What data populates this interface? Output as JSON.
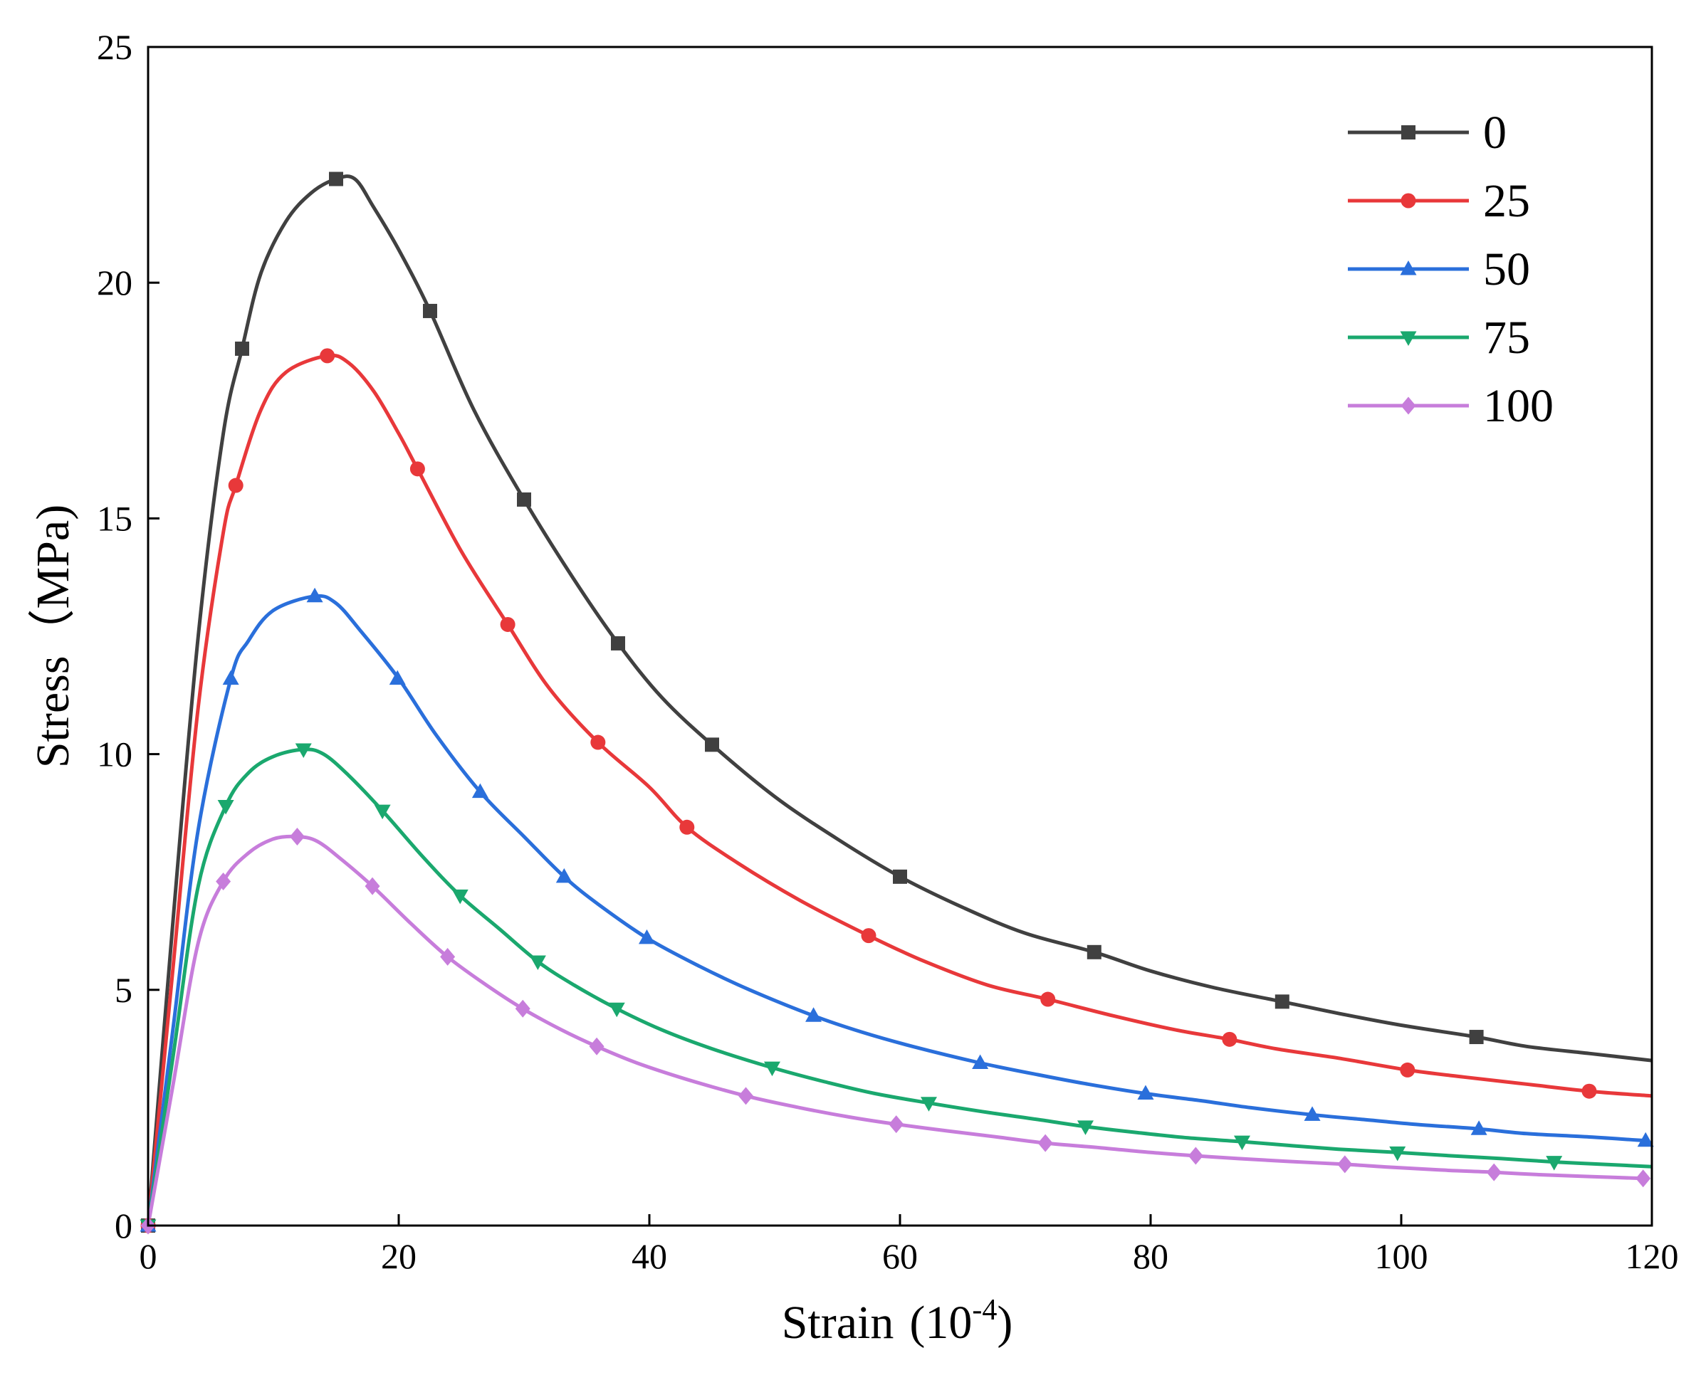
{
  "chart_data": {
    "type": "line",
    "title": "",
    "xlabel": "Strain",
    "xlabel_unit_base": "(10",
    "xlabel_unit_exp": "-4",
    "xlabel_unit_close": ")",
    "ylabel": "Stress（MPa)",
    "xlim": [
      0,
      120
    ],
    "ylim": [
      0,
      25
    ],
    "xticks": [
      0,
      20,
      40,
      60,
      80,
      100,
      120
    ],
    "yticks": [
      0,
      5,
      10,
      15,
      20,
      25
    ],
    "grid": false,
    "legend_position": "top-right",
    "series": [
      {
        "name": "0",
        "color": "#404040",
        "marker": "square",
        "curve": [
          [
            0,
            0
          ],
          [
            2,
            6.5
          ],
          [
            4,
            12.5
          ],
          [
            6,
            16.8
          ],
          [
            7.5,
            18.6
          ],
          [
            9,
            20.2
          ],
          [
            11,
            21.3
          ],
          [
            13,
            21.9
          ],
          [
            15,
            22.2
          ],
          [
            16.5,
            22.2
          ],
          [
            18,
            21.6
          ],
          [
            20,
            20.7
          ],
          [
            22.5,
            19.4
          ],
          [
            26,
            17.3
          ],
          [
            30,
            15.4
          ],
          [
            34,
            13.7
          ],
          [
            37.5,
            12.35
          ],
          [
            41,
            11.2
          ],
          [
            45,
            10.2
          ],
          [
            50,
            9.1
          ],
          [
            55,
            8.2
          ],
          [
            60,
            7.4
          ],
          [
            65,
            6.75
          ],
          [
            70,
            6.2
          ],
          [
            75.5,
            5.8
          ],
          [
            80,
            5.4
          ],
          [
            85,
            5.05
          ],
          [
            90.5,
            4.75
          ],
          [
            95,
            4.5
          ],
          [
            100,
            4.25
          ],
          [
            106,
            4.0
          ],
          [
            110,
            3.8
          ],
          [
            115,
            3.65
          ],
          [
            120,
            3.5
          ]
        ],
        "markers": [
          [
            0,
            0
          ],
          [
            7.5,
            18.6
          ],
          [
            15,
            22.2
          ],
          [
            22.5,
            19.4
          ],
          [
            30,
            15.4
          ],
          [
            37.5,
            12.35
          ],
          [
            45,
            10.2
          ],
          [
            60,
            7.4
          ],
          [
            75.5,
            5.8
          ],
          [
            90.5,
            4.75
          ],
          [
            106,
            4.0
          ]
        ]
      },
      {
        "name": "25",
        "color": "#e8383a",
        "marker": "circle",
        "curve": [
          [
            0,
            0
          ],
          [
            2,
            5.5
          ],
          [
            4,
            11
          ],
          [
            6,
            14.7
          ],
          [
            7,
            15.7
          ],
          [
            9,
            17.3
          ],
          [
            11,
            18.1
          ],
          [
            14.3,
            18.45
          ],
          [
            16,
            18.3
          ],
          [
            18,
            17.7
          ],
          [
            20,
            16.8
          ],
          [
            21.5,
            16.05
          ],
          [
            25,
            14.3
          ],
          [
            28.7,
            12.75
          ],
          [
            32,
            11.4
          ],
          [
            35.9,
            10.25
          ],
          [
            40,
            9.3
          ],
          [
            43,
            8.45
          ],
          [
            47,
            7.7
          ],
          [
            52,
            6.9
          ],
          [
            57.5,
            6.15
          ],
          [
            62,
            5.6
          ],
          [
            67,
            5.1
          ],
          [
            71.8,
            4.8
          ],
          [
            77,
            4.45
          ],
          [
            82,
            4.15
          ],
          [
            86.3,
            3.95
          ],
          [
            90,
            3.75
          ],
          [
            95,
            3.55
          ],
          [
            100.5,
            3.3
          ],
          [
            105,
            3.15
          ],
          [
            110,
            3.0
          ],
          [
            115,
            2.85
          ],
          [
            120,
            2.75
          ]
        ],
        "markers": [
          [
            0,
            0
          ],
          [
            7,
            15.7
          ],
          [
            14.3,
            18.45
          ],
          [
            21.5,
            16.05
          ],
          [
            28.7,
            12.75
          ],
          [
            35.9,
            10.25
          ],
          [
            43,
            8.45
          ],
          [
            57.5,
            6.15
          ],
          [
            71.8,
            4.8
          ],
          [
            86.3,
            3.95
          ],
          [
            100.5,
            3.3
          ],
          [
            115,
            2.85
          ]
        ]
      },
      {
        "name": "50",
        "color": "#2a6fdb",
        "marker": "triangle-up",
        "curve": [
          [
            0,
            0
          ],
          [
            2,
            4.2
          ],
          [
            4,
            8.4
          ],
          [
            6.6,
            11.6
          ],
          [
            8,
            12.4
          ],
          [
            10,
            13.05
          ],
          [
            13.3,
            13.35
          ],
          [
            15,
            13.2
          ],
          [
            17,
            12.6
          ],
          [
            20,
            11.6
          ],
          [
            23,
            10.4
          ],
          [
            26.5,
            9.2
          ],
          [
            30,
            8.25
          ],
          [
            33.2,
            7.4
          ],
          [
            36,
            6.8
          ],
          [
            39.8,
            6.1
          ],
          [
            44,
            5.5
          ],
          [
            48,
            5.0
          ],
          [
            53.1,
            4.45
          ],
          [
            57,
            4.1
          ],
          [
            61,
            3.8
          ],
          [
            66.4,
            3.45
          ],
          [
            71,
            3.2
          ],
          [
            75,
            3.0
          ],
          [
            79.6,
            2.8
          ],
          [
            84,
            2.65
          ],
          [
            88,
            2.5
          ],
          [
            92.9,
            2.35
          ],
          [
            97,
            2.25
          ],
          [
            101,
            2.15
          ],
          [
            106.2,
            2.05
          ],
          [
            110,
            1.95
          ],
          [
            115,
            1.88
          ],
          [
            119.5,
            1.8
          ]
        ],
        "markers": [
          [
            0,
            0
          ],
          [
            6.6,
            11.6
          ],
          [
            13.3,
            13.35
          ],
          [
            19.9,
            11.6
          ],
          [
            26.5,
            9.2
          ],
          [
            33.2,
            7.4
          ],
          [
            39.8,
            6.1
          ],
          [
            53.1,
            4.45
          ],
          [
            66.4,
            3.45
          ],
          [
            79.6,
            2.8
          ],
          [
            92.9,
            2.35
          ],
          [
            106.2,
            2.05
          ],
          [
            119.5,
            1.8
          ]
        ]
      },
      {
        "name": "75",
        "color": "#1aa86e",
        "marker": "triangle-down",
        "curve": [
          [
            0,
            0
          ],
          [
            2,
            3.6
          ],
          [
            4,
            7.2
          ],
          [
            6.2,
            8.9
          ],
          [
            8,
            9.6
          ],
          [
            10,
            9.95
          ],
          [
            12.4,
            10.1
          ],
          [
            14,
            10.0
          ],
          [
            16,
            9.55
          ],
          [
            18.7,
            8.8
          ],
          [
            22,
            7.8
          ],
          [
            24.9,
            7.0
          ],
          [
            28,
            6.3
          ],
          [
            31.1,
            5.6
          ],
          [
            34,
            5.1
          ],
          [
            37.4,
            4.6
          ],
          [
            41,
            4.15
          ],
          [
            45,
            3.75
          ],
          [
            49.8,
            3.35
          ],
          [
            54,
            3.05
          ],
          [
            58,
            2.8
          ],
          [
            62.3,
            2.6
          ],
          [
            67,
            2.4
          ],
          [
            71,
            2.25
          ],
          [
            74.8,
            2.1
          ],
          [
            79,
            1.97
          ],
          [
            83,
            1.86
          ],
          [
            87.3,
            1.78
          ],
          [
            91,
            1.7
          ],
          [
            95,
            1.62
          ],
          [
            99.7,
            1.55
          ],
          [
            104,
            1.48
          ],
          [
            108,
            1.42
          ],
          [
            112.2,
            1.35
          ],
          [
            116,
            1.3
          ],
          [
            120,
            1.25
          ]
        ],
        "markers": [
          [
            0,
            0
          ],
          [
            6.2,
            8.9
          ],
          [
            12.4,
            10.1
          ],
          [
            18.7,
            8.8
          ],
          [
            24.9,
            7.0
          ],
          [
            31.1,
            5.6
          ],
          [
            37.4,
            4.6
          ],
          [
            49.8,
            3.35
          ],
          [
            62.3,
            2.6
          ],
          [
            74.8,
            2.1
          ],
          [
            87.3,
            1.78
          ],
          [
            99.7,
            1.55
          ],
          [
            112.2,
            1.35
          ]
        ]
      },
      {
        "name": "100",
        "color": "#c77ddb",
        "marker": "diamond",
        "curve": [
          [
            0,
            0
          ],
          [
            2,
            3.0
          ],
          [
            4,
            6.0
          ],
          [
            6,
            7.3
          ],
          [
            8,
            7.9
          ],
          [
            10,
            8.2
          ],
          [
            11.9,
            8.25
          ],
          [
            13.5,
            8.15
          ],
          [
            15.5,
            7.75
          ],
          [
            17.9,
            7.2
          ],
          [
            21,
            6.4
          ],
          [
            23.9,
            5.7
          ],
          [
            27,
            5.1
          ],
          [
            29.9,
            4.6
          ],
          [
            33,
            4.15
          ],
          [
            35.8,
            3.8
          ],
          [
            39,
            3.45
          ],
          [
            43,
            3.1
          ],
          [
            47.7,
            2.75
          ],
          [
            52,
            2.5
          ],
          [
            56,
            2.3
          ],
          [
            59.7,
            2.15
          ],
          [
            64,
            2.0
          ],
          [
            68,
            1.87
          ],
          [
            71.6,
            1.75
          ],
          [
            76,
            1.65
          ],
          [
            80,
            1.55
          ],
          [
            83.6,
            1.48
          ],
          [
            87,
            1.42
          ],
          [
            91,
            1.36
          ],
          [
            95.5,
            1.3
          ],
          [
            99,
            1.24
          ],
          [
            103,
            1.18
          ],
          [
            107.4,
            1.13
          ],
          [
            111,
            1.08
          ],
          [
            115,
            1.04
          ],
          [
            119.3,
            1.0
          ]
        ],
        "markers": [
          [
            0,
            0
          ],
          [
            6,
            7.3
          ],
          [
            11.9,
            8.25
          ],
          [
            17.9,
            7.2
          ],
          [
            23.9,
            5.7
          ],
          [
            29.9,
            4.6
          ],
          [
            35.8,
            3.8
          ],
          [
            47.7,
            2.75
          ],
          [
            59.7,
            2.15
          ],
          [
            71.6,
            1.75
          ],
          [
            83.6,
            1.48
          ],
          [
            95.5,
            1.3
          ],
          [
            107.4,
            1.13
          ],
          [
            119.3,
            1.0
          ]
        ]
      }
    ]
  }
}
